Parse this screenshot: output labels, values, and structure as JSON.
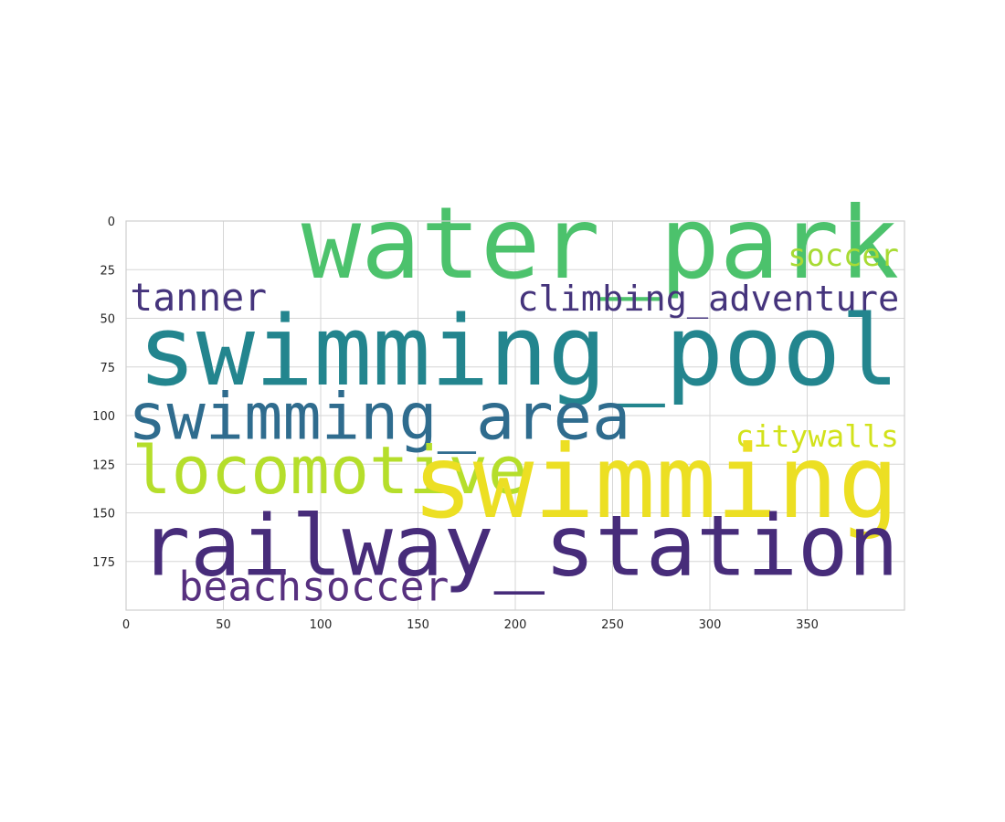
{
  "chart_data": {
    "type": "wordcloud",
    "grid": true,
    "xlim": [
      0,
      400
    ],
    "ylim": [
      200,
      0
    ],
    "x_ticks": [
      0,
      50,
      100,
      150,
      200,
      250,
      300,
      350
    ],
    "y_ticks": [
      0,
      25,
      50,
      75,
      100,
      125,
      150,
      175
    ],
    "words": [
      {
        "text": "water_park",
        "x": 90,
        "y": 29,
        "size": 37,
        "color": "#4cc26c"
      },
      {
        "text": "soccer",
        "x": 340,
        "y": 23,
        "size": 13,
        "color": "#a8db34"
      },
      {
        "text": "tanner",
        "x": 2,
        "y": 46,
        "size": 13,
        "color": "#45347c"
      },
      {
        "text": "climbing_adventure",
        "x": 201,
        "y": 46,
        "size": 13.5,
        "color": "#45347c"
      },
      {
        "text": "swimming_pool",
        "x": 6,
        "y": 84,
        "size": 46,
        "color": "#23858e"
      },
      {
        "text": "swimming_area",
        "x": 1,
        "y": 112,
        "size": 22,
        "color": "#2f6c8e"
      },
      {
        "text": "citywalls",
        "x": 313,
        "y": 116,
        "size": 12.5,
        "color": "#d2e21b"
      },
      {
        "text": "locomotive",
        "x": 3,
        "y": 140,
        "size": 22.5,
        "color": "#b5de2b"
      },
      {
        "text": "swimming",
        "x": 147,
        "y": 152,
        "size": 46,
        "color": "#ecdf23"
      },
      {
        "text": "railway_station",
        "x": 7,
        "y": 182,
        "size": 35,
        "color": "#472c7a"
      },
      {
        "text": "beachsoccer",
        "x": 27,
        "y": 195,
        "size": 14,
        "color": "#57307f"
      }
    ]
  }
}
